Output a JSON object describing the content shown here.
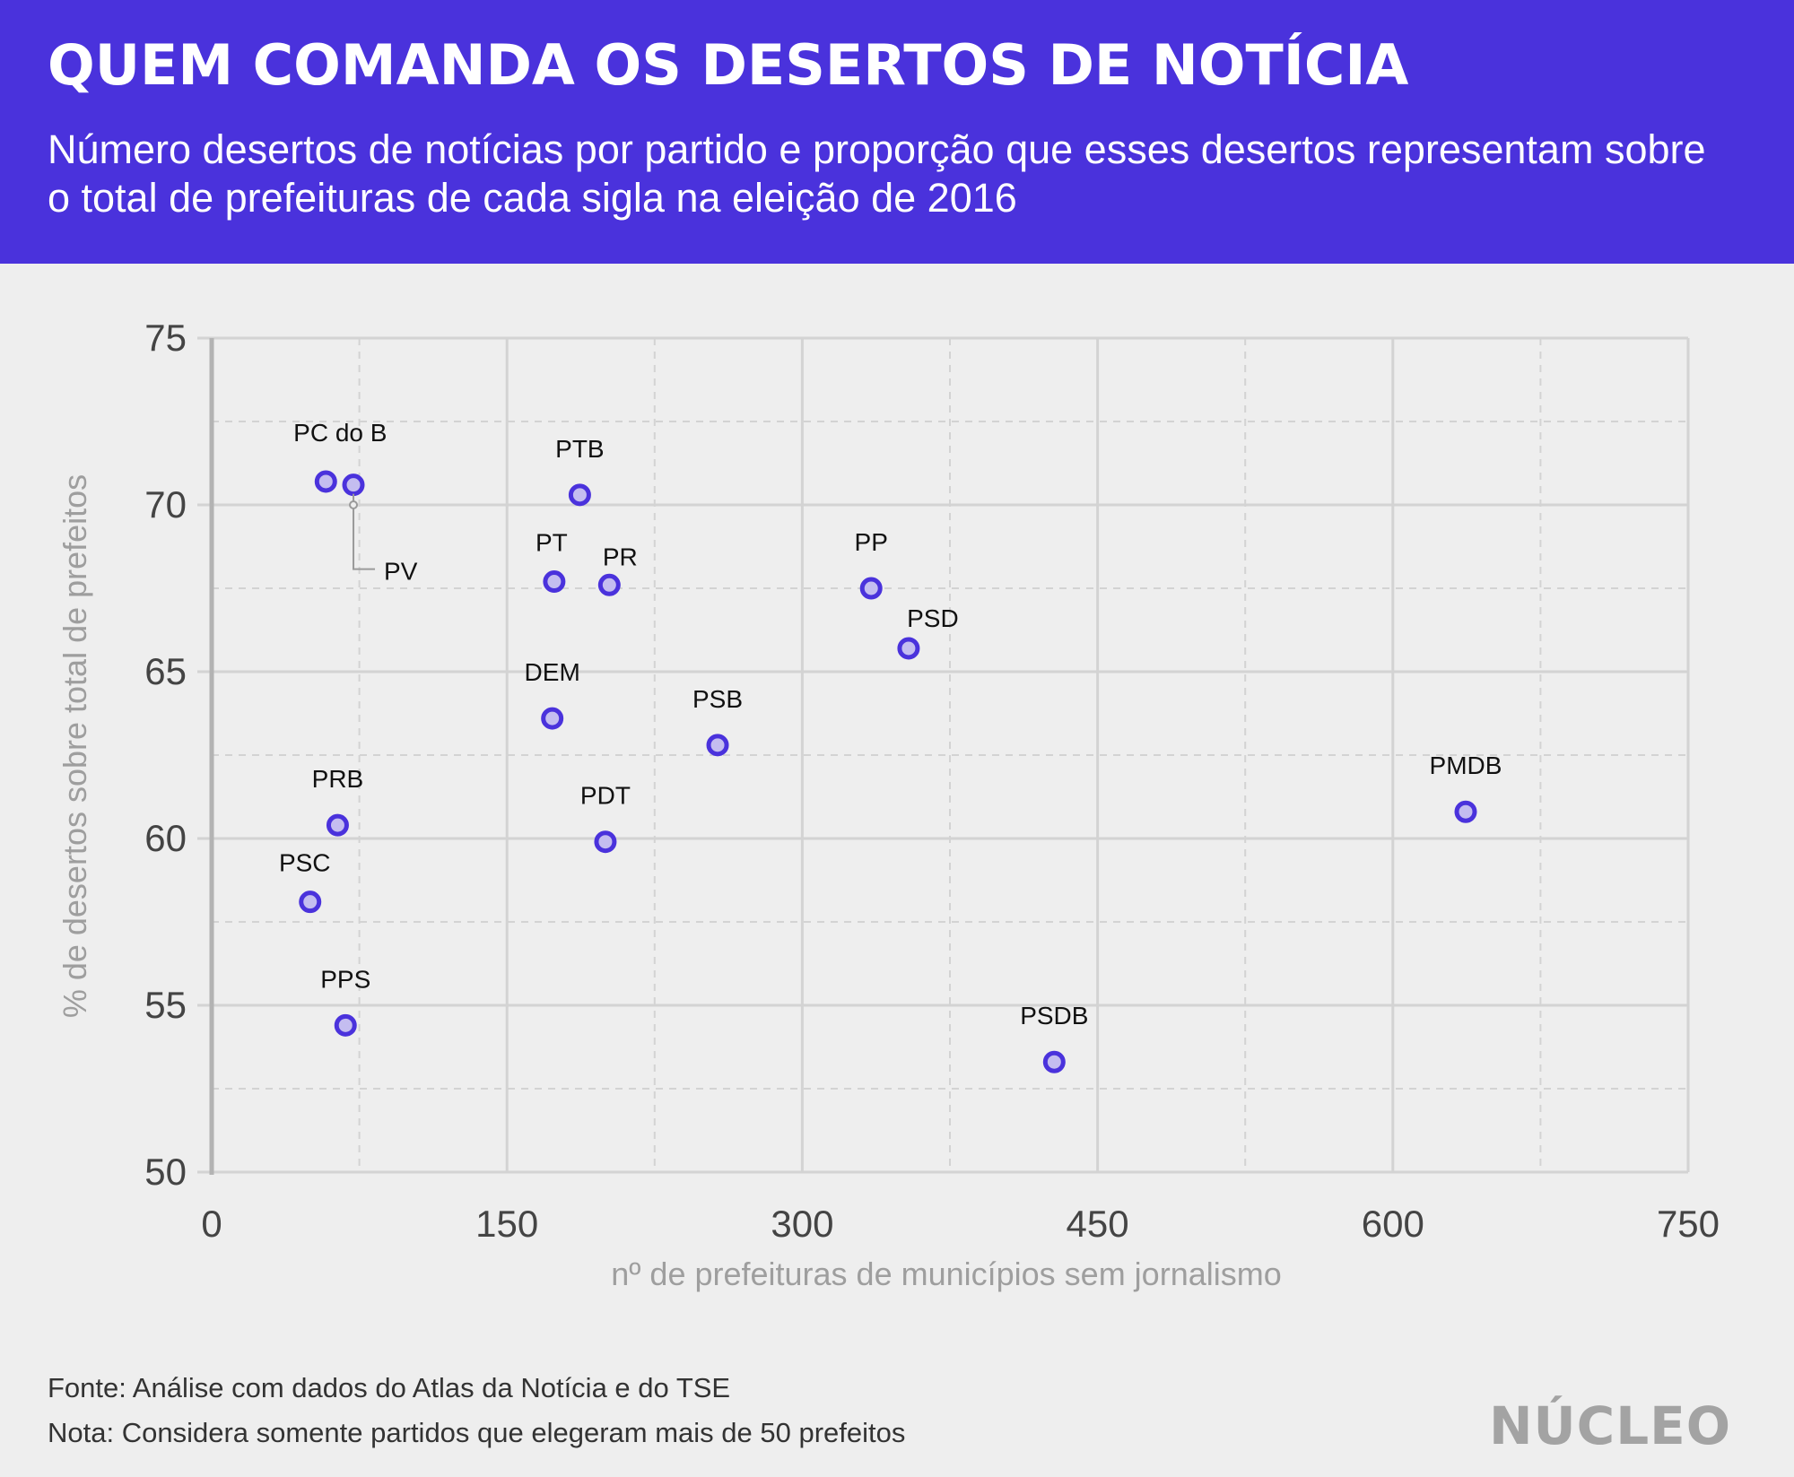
{
  "header": {
    "title": "QUEM COMANDA OS DESERTOS DE NOTÍCIA",
    "subtitle": "Número desertos de notícias por partido e proporção que esses desertos representam sobre o total de prefeituras de cada sigla na eleição de 2016"
  },
  "colors": {
    "header_bg": "#4a32dc",
    "point_stroke": "#4a32dc",
    "point_fill": "#c4bdf0",
    "grid": "#d3d3d3"
  },
  "chart_data": {
    "type": "scatter",
    "title": "QUEM COMANDA OS DESERTOS DE NOTÍCIA",
    "xlabel": "nº de prefeituras de municípios sem jornalismo",
    "ylabel": "% de desertos sobre total de prefeitos",
    "xlim": [
      0,
      750
    ],
    "ylim": [
      50,
      75
    ],
    "xticks": [
      0,
      150,
      300,
      450,
      600,
      750
    ],
    "yticks": [
      50,
      55,
      60,
      65,
      70,
      75
    ],
    "x_tick_labels": [
      "0",
      "150",
      "300",
      "450",
      "600",
      "750"
    ],
    "y_tick_labels": [
      "50",
      "55",
      "60",
      "65",
      "70",
      "75"
    ],
    "grid": true,
    "points": [
      {
        "label": "PC do B",
        "x": 58,
        "y": 70.7
      },
      {
        "label": "PV",
        "x": 72,
        "y": 70.6
      },
      {
        "label": "PTB",
        "x": 187,
        "y": 70.3
      },
      {
        "label": "PT",
        "x": 174,
        "y": 67.7
      },
      {
        "label": "PR",
        "x": 202,
        "y": 67.6
      },
      {
        "label": "PP",
        "x": 335,
        "y": 67.5
      },
      {
        "label": "PSD",
        "x": 354,
        "y": 65.7
      },
      {
        "label": "DEM",
        "x": 173,
        "y": 63.6
      },
      {
        "label": "PSB",
        "x": 257,
        "y": 62.8
      },
      {
        "label": "PMDB",
        "x": 637,
        "y": 60.8
      },
      {
        "label": "PRB",
        "x": 64,
        "y": 60.4
      },
      {
        "label": "PDT",
        "x": 200,
        "y": 59.9
      },
      {
        "label": "PSC",
        "x": 50,
        "y": 58.1
      },
      {
        "label": "PPS",
        "x": 68,
        "y": 54.4
      },
      {
        "label": "PSDB",
        "x": 428,
        "y": 53.3
      }
    ]
  },
  "footer": {
    "source": "Fonte: Análise com dados do Atlas da Notícia e do TSE",
    "note": "Nota: Considera somente partidos que elegeram mais de 50 prefeitos",
    "logo": "NÚCLEO"
  }
}
